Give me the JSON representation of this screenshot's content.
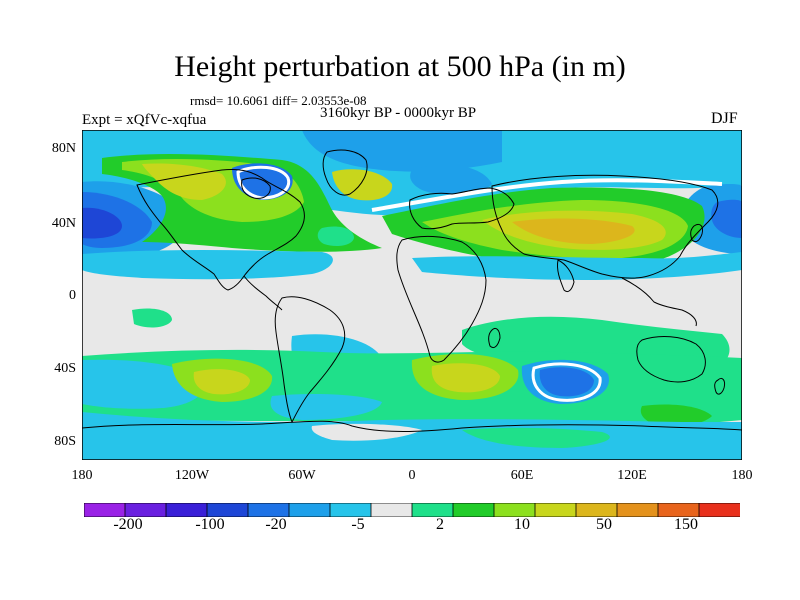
{
  "title": "Height perturbation at 500 hPa (in m)",
  "stats": "rmsd= 10.6061 diff= 2.03553e-08",
  "period": "3160kyr BP - 0000kyr BP",
  "experiment": "Expt = xQfVc-xqfua",
  "season": "DJF",
  "lat_ticks": [
    "80N",
    "40N",
    "0",
    "40S",
    "80S"
  ],
  "lon_ticks": [
    "180",
    "120W",
    "60W",
    "0",
    "60E",
    "120E",
    "180"
  ],
  "colorbar": {
    "colors": [
      "#9a22e6",
      "#6a20e0",
      "#3a20d8",
      "#1e46d6",
      "#1e72e6",
      "#1ea0ea",
      "#27c4ea",
      "#e8e8e8",
      "#1fe08a",
      "#22cc2a",
      "#8ce01e",
      "#c8d61c",
      "#dcb61c",
      "#e4921c",
      "#e8641c",
      "#e8301c"
    ],
    "labels": [
      "-200",
      "-100",
      "-20",
      "-5",
      "2",
      "10",
      "50",
      "150"
    ]
  },
  "map_colors": {
    "ocean_neutral": "#e8e8e8",
    "cyan": "#27c4ea",
    "light_blue": "#1ea0ea",
    "blue": "#1e72e6",
    "dark_blue": "#1e46d6",
    "green": "#1fe08a",
    "bright_green": "#22cc2a",
    "lime": "#8ce01e",
    "yellow": "#c8d61c",
    "gold": "#dcb61c"
  }
}
